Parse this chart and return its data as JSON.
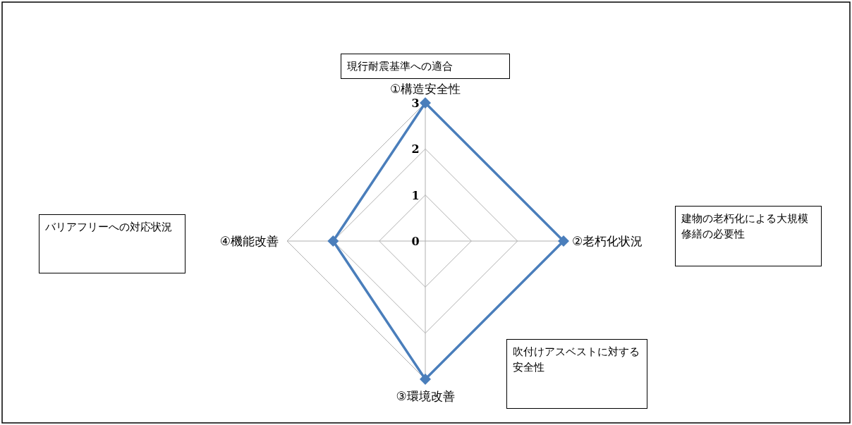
{
  "chart_data": {
    "type": "radar",
    "categories": [
      "①構造安全性",
      "②老朽化状況",
      "③環境改善",
      "④機能改善"
    ],
    "series": [
      {
        "color": "#4a7ebb",
        "values": [
          3,
          3,
          3,
          2
        ]
      }
    ],
    "ylim": [
      0,
      3
    ],
    "yticks": [
      0,
      1,
      2,
      3
    ],
    "grid": true,
    "marker": "diamond",
    "line_style": "solid",
    "annotations": [
      "現行耐震基準への適合",
      "建物の老朽化による大規模修繕の必要性",
      "吹付けアスベストに対する安全性",
      "バリアフリーへの対応状況"
    ]
  }
}
